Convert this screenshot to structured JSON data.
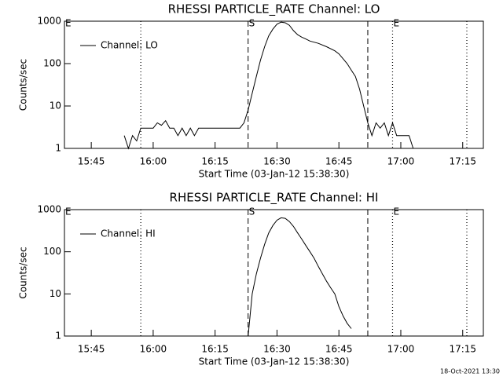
{
  "chart_data": [
    {
      "type": "line",
      "title": "RHESSI PARTICLE_RATE Channel: LO",
      "xlabel": "Start Time (03-Jan-12 15:38:30)",
      "ylabel": "Counts/sec",
      "log_y": true,
      "legend": "upper left",
      "xlim": [
        "15:38:30",
        "17:20"
      ],
      "xticks": [
        "15:45",
        "16:00",
        "16:15",
        "16:30",
        "16:45",
        "17:00",
        "17:15"
      ],
      "ylim": [
        1,
        1000
      ],
      "yticks": [
        1,
        10,
        100,
        1000
      ],
      "x": [
        "15:53",
        "15:54",
        "15:55",
        "15:56",
        "15:57",
        "15:58",
        "16:00",
        "16:01",
        "16:02",
        "16:03",
        "16:04",
        "16:05",
        "16:06",
        "16:07",
        "16:08",
        "16:09",
        "16:10",
        "16:11",
        "16:13",
        "16:16",
        "16:18",
        "16:20",
        "16:21",
        "16:22",
        "16:23",
        "16:24",
        "16:25",
        "16:26",
        "16:27",
        "16:28",
        "16:29",
        "16:30",
        "16:31",
        "16:32",
        "16:33",
        "16:34",
        "16:35",
        "16:36",
        "16:37",
        "16:38",
        "16:40",
        "16:42",
        "16:44",
        "16:45",
        "16:46",
        "16:47",
        "16:48",
        "16:49",
        "16:50",
        "16:51",
        "16:52",
        "16:53",
        "16:54",
        "16:55",
        "16:56",
        "16:57",
        "16:58",
        "16:59",
        "17:00",
        "17:02",
        "17:03"
      ],
      "series": [
        {
          "name": "Channel: LO",
          "color": "#000000",
          "values": [
            2,
            1,
            2,
            1.5,
            3,
            3,
            3,
            4,
            3.5,
            4.5,
            3,
            3,
            2,
            3,
            2,
            3,
            2,
            3,
            3,
            3,
            3,
            3,
            3,
            4,
            8,
            20,
            50,
            120,
            250,
            450,
            650,
            850,
            950,
            920,
            800,
            600,
            480,
            420,
            380,
            340,
            300,
            250,
            200,
            170,
            130,
            100,
            70,
            50,
            25,
            10,
            4,
            2,
            4,
            3,
            4,
            2,
            4,
            2,
            2,
            2,
            1
          ]
        }
      ],
      "markers": [
        {
          "x": "15:38:30",
          "style": "none",
          "label": "E"
        },
        {
          "x": "15:57",
          "style": "dotted"
        },
        {
          "x": "16:23",
          "style": "dashed",
          "label": "S"
        },
        {
          "x": "16:52",
          "style": "dashed"
        },
        {
          "x": "16:58",
          "style": "dotted",
          "label": "E"
        },
        {
          "x": "17:16",
          "style": "dotted"
        }
      ]
    },
    {
      "type": "line",
      "title": "RHESSI PARTICLE_RATE Channel: HI",
      "xlabel": "Start Time (03-Jan-12 15:38:30)",
      "ylabel": "Counts/sec",
      "log_y": true,
      "legend": "upper left",
      "xlim": [
        "15:38:30",
        "17:20"
      ],
      "xticks": [
        "15:45",
        "16:00",
        "16:15",
        "16:30",
        "16:45",
        "17:00",
        "17:15"
      ],
      "ylim": [
        1,
        1000
      ],
      "yticks": [
        1,
        10,
        100,
        1000
      ],
      "x": [
        "16:23",
        "16:24",
        "16:25",
        "16:26",
        "16:27",
        "16:28",
        "16:29",
        "16:30",
        "16:31",
        "16:32",
        "16:33",
        "16:34",
        "16:35",
        "16:36",
        "16:37",
        "16:38",
        "16:39",
        "16:40",
        "16:41",
        "16:42",
        "16:43",
        "16:44",
        "16:45",
        "16:46",
        "16:47",
        "16:48"
      ],
      "series": [
        {
          "name": "Channel: HI",
          "color": "#000000",
          "values": [
            1,
            10,
            30,
            70,
            150,
            280,
            420,
            560,
            640,
            620,
            520,
            400,
            280,
            200,
            140,
            100,
            70,
            45,
            30,
            20,
            14,
            10,
            5,
            3,
            2,
            1.5
          ]
        }
      ],
      "markers": [
        {
          "x": "15:38:30",
          "style": "none",
          "label": "E"
        },
        {
          "x": "15:57",
          "style": "dotted"
        },
        {
          "x": "16:23",
          "style": "dashed",
          "label": "S"
        },
        {
          "x": "16:52",
          "style": "dashed"
        },
        {
          "x": "16:58",
          "style": "dotted",
          "label": "E"
        },
        {
          "x": "17:16",
          "style": "dotted"
        }
      ]
    }
  ],
  "footer": "18-Oct-2021 13:30"
}
